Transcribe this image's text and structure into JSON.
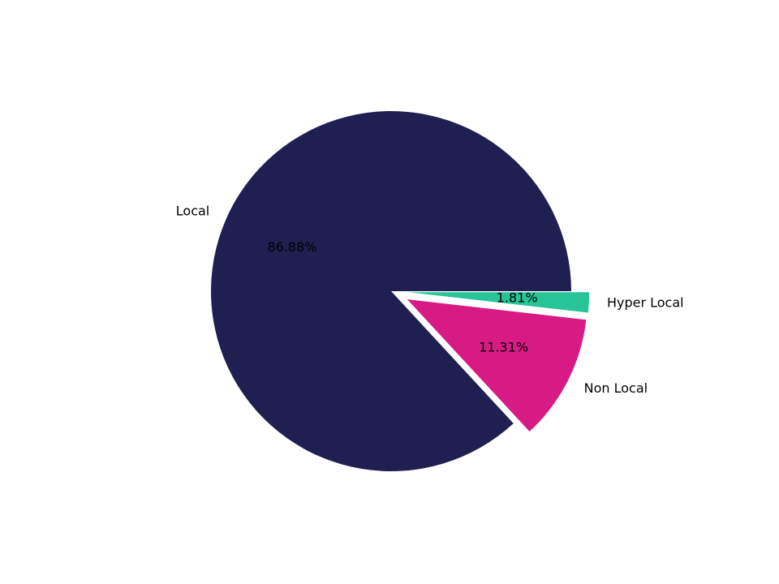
{
  "chart_data": {
    "type": "pie",
    "categories": [
      "Local",
      "Non Local",
      "Hyper Local"
    ],
    "values": [
      86.88,
      11.31,
      1.81
    ],
    "value_labels": [
      "86.88%",
      "11.31%",
      "1.81%"
    ],
    "colors": [
      "#1f1f52",
      "#d81b84",
      "#26c497"
    ],
    "explode": [
      0,
      0.1,
      0.1
    ]
  }
}
